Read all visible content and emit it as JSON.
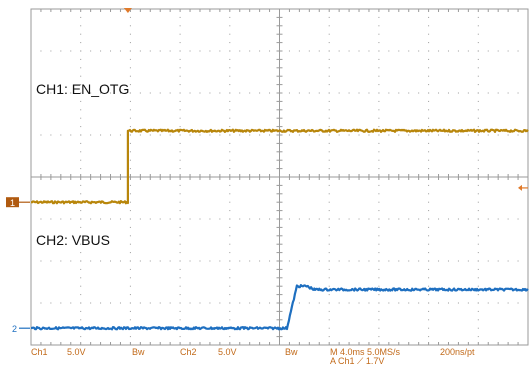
{
  "chart_data": {
    "type": "line",
    "grid": true,
    "grid_divisions": {
      "x": 10,
      "y": 8
    },
    "time_per_div_ms": 4.0,
    "x_range_ms": [
      -20,
      20
    ],
    "series": [
      {
        "name": "CH1: EN_OTG",
        "channel": "1",
        "color": "#b8860b",
        "volts_per_div": 5.0,
        "ground_level_div": -0.6,
        "x_ms": [
          -20,
          -12.2,
          -12.2,
          20
        ],
        "y_v": [
          0.0,
          0.0,
          8.5,
          8.5
        ]
      },
      {
        "name": "CH2: VBUS",
        "channel": "2",
        "color": "#1e6fc0",
        "volts_per_div": 5.0,
        "ground_level_div": -3.6,
        "x_ms": [
          -20,
          0.6,
          1.4,
          2.2,
          2.8,
          20
        ],
        "y_v": [
          0.0,
          0.0,
          5.0,
          5.0,
          4.6,
          4.6
        ]
      }
    ],
    "labels": {
      "ch1": "CH1: EN_OTG",
      "ch2": "CH2: VBUS",
      "ch1_marker": "1",
      "ch2_marker": "2"
    }
  },
  "status_bar": {
    "ch1_name": "Ch1",
    "ch1_scale": "5.0V",
    "ch1_bw": "Bw",
    "ch2_name": "Ch2",
    "ch2_scale": "5.0V",
    "ch2_bw": "Bw",
    "timebase": "M 4.0ms 5.0MS/s",
    "trigger": "A  Ch1  ⟋  1.7V",
    "resolution": "200ns/pt"
  },
  "colors": {
    "ch1": "#b8860b",
    "ch1_marker": "#b05a10",
    "ch2": "#1e6fc0",
    "grid": "#9a9a9a",
    "status_text": "#c26a1a",
    "trigger_marker": "#e07a2a"
  }
}
